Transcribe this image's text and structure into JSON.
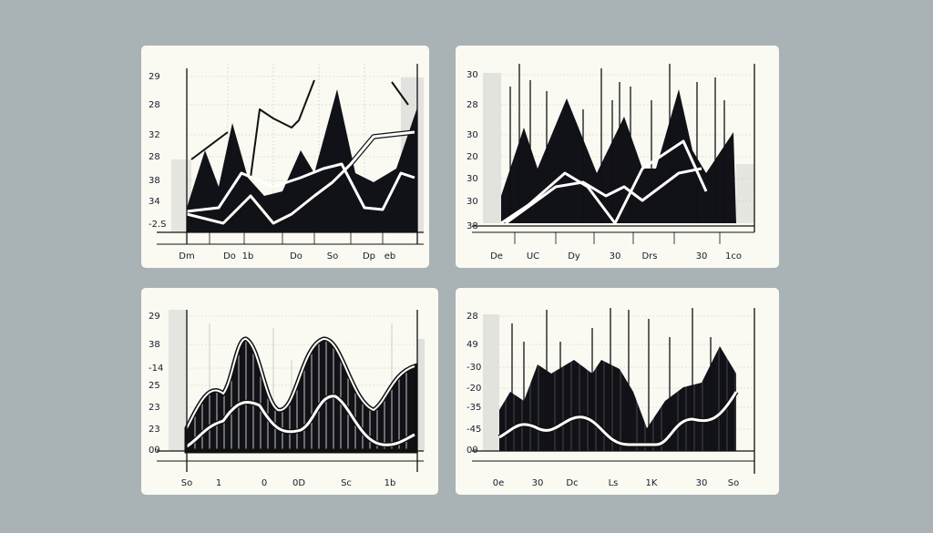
{
  "panels": [
    {
      "y_labels": [
        "29",
        "28",
        "32",
        "28",
        "38",
        "34",
        "-2.S"
      ],
      "x_labels": [
        "Dm",
        "Do",
        "1b",
        "Do",
        "So",
        "Dp",
        "eb"
      ]
    },
    {
      "y_labels": [
        "30",
        "28",
        "30",
        "20",
        "30",
        "30",
        "38"
      ],
      "x_labels": [
        "De",
        "UC",
        "Dy",
        "30",
        "Drs",
        "30",
        "1co"
      ]
    },
    {
      "y_labels": [
        "29",
        "38",
        "-14",
        "25",
        "23",
        "23",
        "0θ"
      ],
      "x_labels": [
        "So",
        "1",
        "0",
        "0D",
        "Sc",
        "1b"
      ]
    },
    {
      "y_labels": [
        "28",
        "49",
        "-30",
        "-20",
        "-35",
        "-45",
        "0θ"
      ],
      "x_labels": [
        "0e",
        "30",
        "Dc",
        "Ls",
        "1K",
        "30",
        "So"
      ]
    }
  ]
}
